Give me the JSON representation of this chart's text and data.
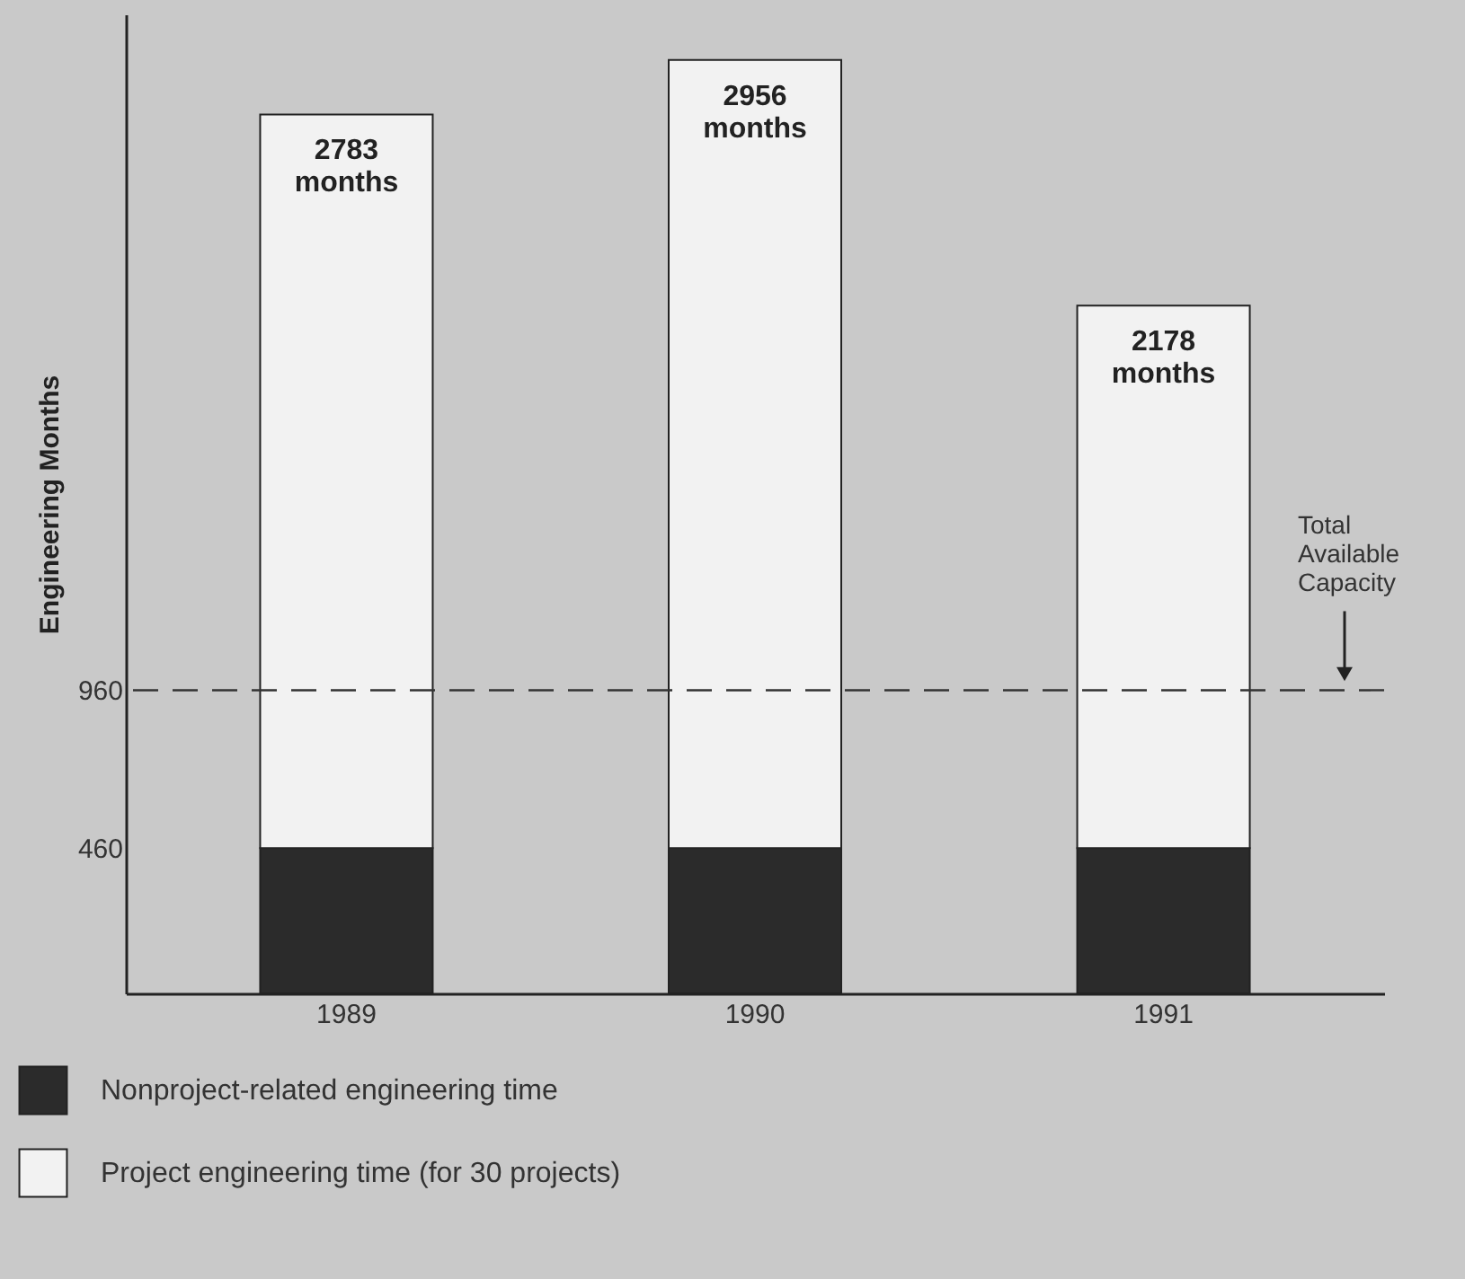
{
  "chart_data": {
    "type": "bar",
    "stacked": true,
    "ylabel": "Engineering Months",
    "categories": [
      "1989",
      "1990",
      "1991"
    ],
    "series": [
      {
        "name": "Nonproject-related engineering time",
        "color": "#2b2b2b",
        "values": [
          460,
          460,
          460
        ]
      },
      {
        "name": "Project engineering time (for 30 projects)",
        "color": "#f2f2f2",
        "values": [
          2323,
          2496,
          1718
        ]
      }
    ],
    "totals": [
      "2783 months",
      "2956 months",
      "2178 months"
    ],
    "ylim": [
      0,
      3100
    ],
    "yticks": [
      460,
      960
    ],
    "grid": false,
    "legend": "bottom left",
    "ref_lines": [
      {
        "axis": "y",
        "value": 960,
        "label": "Total Available Capacity",
        "line_style": "dashed",
        "color": "#333333"
      }
    ]
  }
}
